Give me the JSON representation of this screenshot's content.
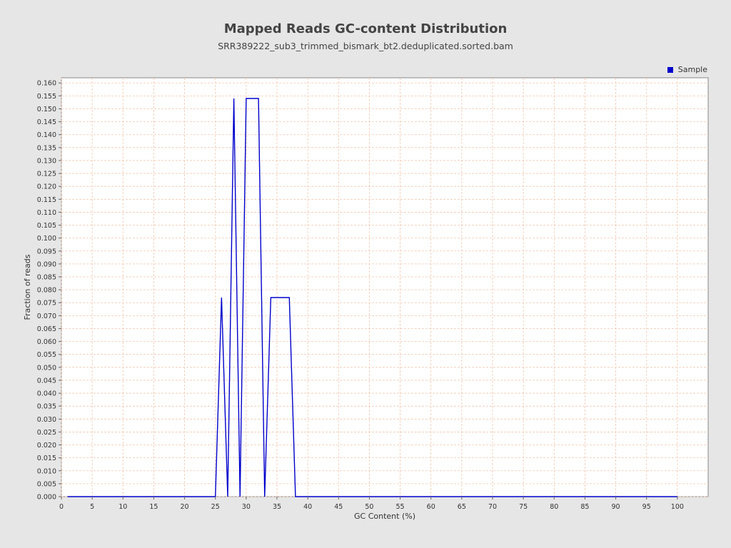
{
  "chart_data": {
    "type": "line",
    "title": "Mapped Reads GC-content Distribution",
    "subtitle": "SRR389222_sub3_trimmed_bismark_bt2.deduplicated.sorted.bam",
    "xlabel": "GC Content (%)",
    "ylabel": "Fraction of reads",
    "xlim": [
      0,
      105
    ],
    "ylim": [
      0,
      0.162
    ],
    "xticks": [
      0,
      5,
      10,
      15,
      20,
      25,
      30,
      35,
      40,
      45,
      50,
      55,
      60,
      65,
      70,
      75,
      80,
      85,
      90,
      95,
      100
    ],
    "yticks": [
      0.0,
      0.005,
      0.01,
      0.015,
      0.02,
      0.025,
      0.03,
      0.035,
      0.04,
      0.045,
      0.05,
      0.055,
      0.06,
      0.065,
      0.07,
      0.075,
      0.08,
      0.085,
      0.09,
      0.095,
      0.1,
      0.105,
      0.11,
      0.115,
      0.12,
      0.125,
      0.13,
      0.135,
      0.14,
      0.145,
      0.15,
      0.155,
      0.16
    ],
    "grid": true,
    "legend_position": "top-right",
    "series": [
      {
        "name": "Sample",
        "color": "#0000cc",
        "x": [
          1,
          25,
          26,
          27,
          28,
          29,
          30,
          31,
          32,
          33,
          34,
          35,
          36,
          37,
          38,
          100
        ],
        "y": [
          0,
          0,
          0.077,
          0,
          0.154,
          0,
          0.154,
          0.154,
          0.154,
          0,
          0.077,
          0.077,
          0.077,
          0.077,
          0,
          0
        ]
      }
    ]
  }
}
